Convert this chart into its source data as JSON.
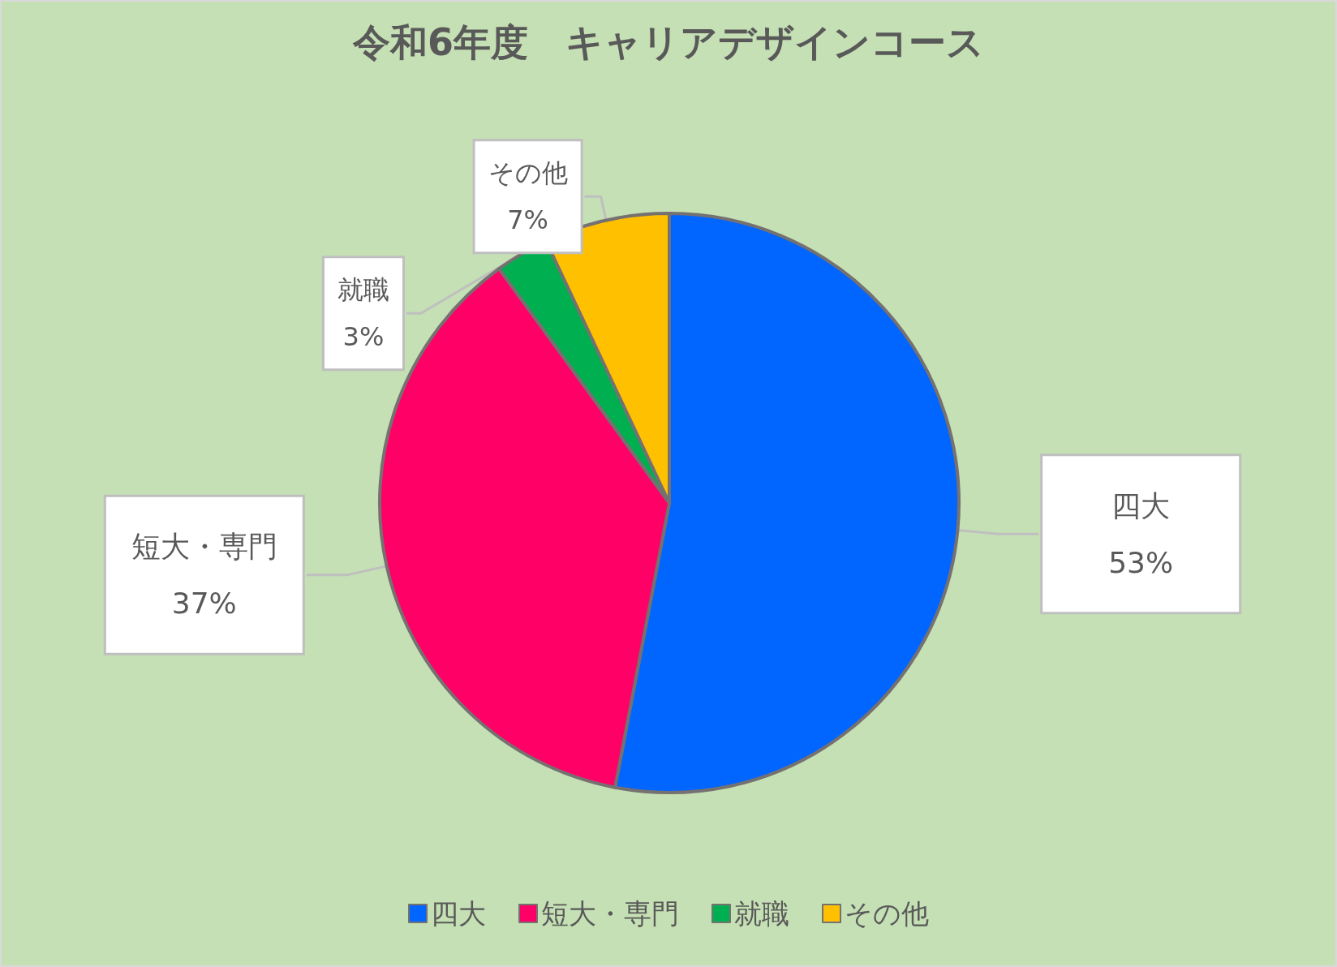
{
  "chart_data": {
    "type": "pie",
    "title": "令和6年度　キャリアデザインコース",
    "categories": [
      "四大",
      "短大・専門",
      "就職",
      "その他"
    ],
    "values": [
      53,
      37,
      3,
      7
    ],
    "value_labels": [
      "53%",
      "37%",
      "3%",
      "7%"
    ],
    "colors": [
      "#0066ff",
      "#ff0066",
      "#00b050",
      "#ffc000"
    ],
    "legend": "bottom"
  }
}
